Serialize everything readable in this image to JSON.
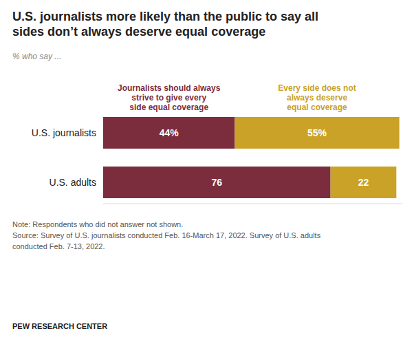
{
  "chart_data": {
    "type": "bar",
    "orientation": "horizontal",
    "stacked": true,
    "title": "U.S. journalists more likely than the public to say all\nsides don’t always deserve equal coverage",
    "subtitle": "% who say ...",
    "categories": [
      "U.S. journalists",
      "U.S. adults"
    ],
    "series": [
      {
        "name": "Journalists should always\nstrive to give every\nside equal coverage",
        "color": "#7b2d3e",
        "values": [
          44,
          76
        ],
        "value_labels": [
          "44%",
          "76"
        ]
      },
      {
        "name": "Every side does not\nalways deserve\nequal coverage",
        "color": "#c9a227",
        "values": [
          55,
          22
        ],
        "value_labels": [
          "55%",
          "22"
        ]
      }
    ],
    "xlim": [
      0,
      100
    ],
    "data_labels": true,
    "tick_labels": false,
    "grid": false,
    "annotations": [
      "Note: Respondents who did not answer not shown.\nSource: Survey of U.S. journalists conducted Feb. 16-March 17, 2022. Survey of U.S. adults\nconducted Feb. 7-13, 2022.",
      "PEW RESEARCH CENTER"
    ]
  }
}
